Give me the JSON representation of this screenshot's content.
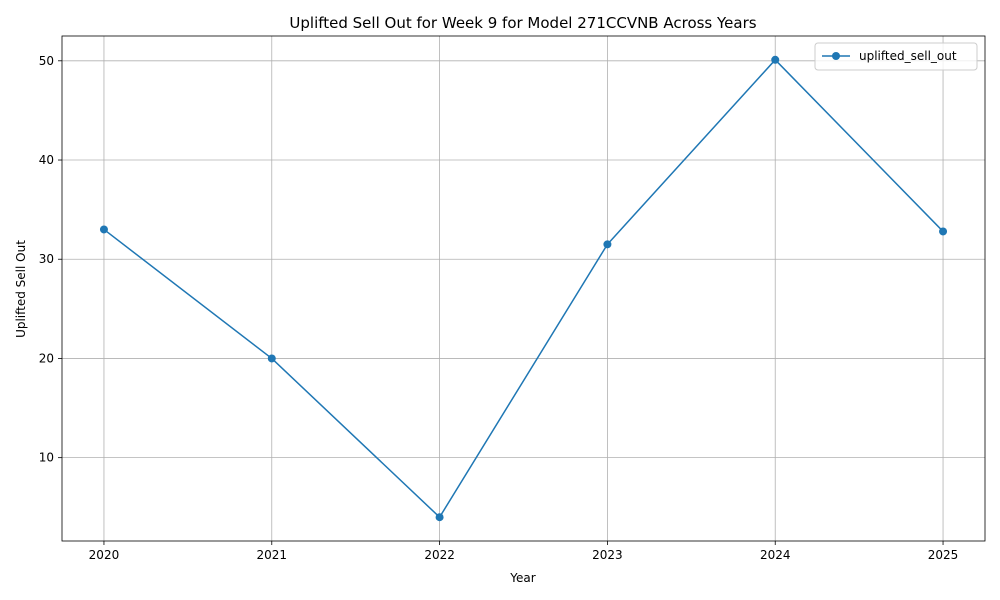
{
  "chart_data": {
    "type": "line",
    "title": "Uplifted Sell Out for Week 9 for Model 271CCVNB Across Years",
    "xlabel": "Year",
    "ylabel": "Uplifted Sell Out",
    "x": [
      2020,
      2021,
      2022,
      2023,
      2024,
      2025
    ],
    "x_tick_labels": [
      "2020",
      "2021",
      "2022",
      "2023",
      "2024",
      "2025"
    ],
    "y_ticks": [
      10,
      20,
      30,
      40,
      50
    ],
    "y_tick_labels": [
      "10",
      "20",
      "30",
      "40",
      "50"
    ],
    "ylim": [
      1.6,
      52.5
    ],
    "xlim": [
      2019.75,
      2025.25
    ],
    "grid": true,
    "legend_position": "top-right",
    "series": [
      {
        "name": "uplifted_sell_out",
        "values": [
          33.0,
          20.0,
          4.0,
          31.5,
          50.1,
          32.8
        ],
        "color": "#1f77b4",
        "marker": "circle"
      }
    ]
  }
}
